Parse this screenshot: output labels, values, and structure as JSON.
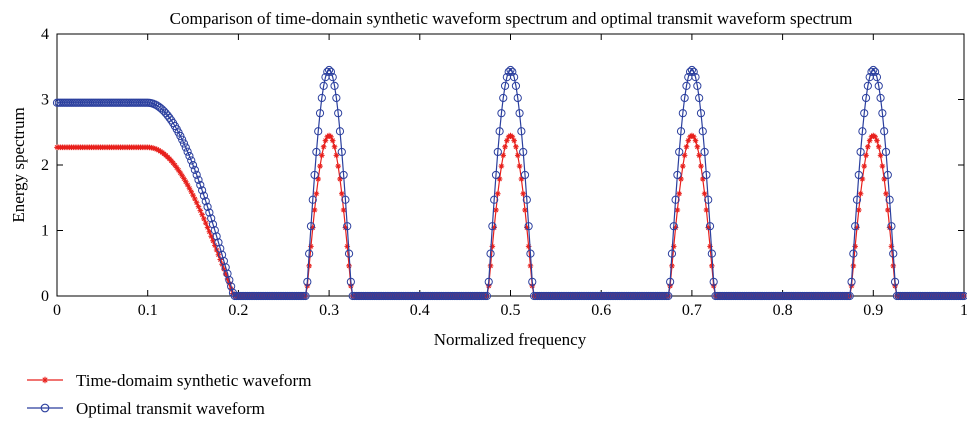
{
  "chart_data": {
    "type": "line",
    "title": "Comparison of time-domain synthetic waveform spectrum and optimal transmit waveform spectrum",
    "xlabel": "Normalized frequency",
    "ylabel": "Energy spectrum",
    "xlim": [
      0,
      1
    ],
    "ylim": [
      0,
      4
    ],
    "xticks": [
      "0",
      "0.1",
      "0.2",
      "0.3",
      "0.4",
      "0.5",
      "0.6",
      "0.7",
      "0.8",
      "0.9",
      "1"
    ],
    "yticks": [
      "0",
      "1",
      "2",
      "3",
      "4"
    ],
    "grid": false,
    "legend_position": "bottom-left",
    "lobes": [
      {
        "center": 0.3,
        "half_width": 0.025
      },
      {
        "center": 0.5,
        "half_width": 0.025
      },
      {
        "center": 0.7,
        "half_width": 0.025
      },
      {
        "center": 0.9,
        "half_width": 0.025
      }
    ],
    "baseband": {
      "flat_until": 0.1,
      "cutoff": 0.195
    },
    "series": [
      {
        "name": "Time-domaim synthetic waveform",
        "color": "#e8201c",
        "marker": "asterisk",
        "baseband_level": 2.27,
        "peak_level": 2.45
      },
      {
        "name": "Optimal transmit waveform",
        "color": "#2b3f9e",
        "marker": "circle",
        "baseband_level": 2.95,
        "peak_level": 3.45
      }
    ]
  }
}
